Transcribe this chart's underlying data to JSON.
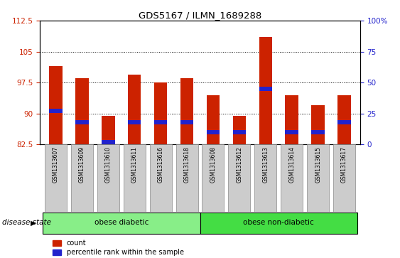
{
  "title": "GDS5167 / ILMN_1689288",
  "samples": [
    "GSM1313607",
    "GSM1313609",
    "GSM1313610",
    "GSM1313611",
    "GSM1313616",
    "GSM1313618",
    "GSM1313608",
    "GSM1313612",
    "GSM1313613",
    "GSM1313614",
    "GSM1313615",
    "GSM1313617"
  ],
  "count_values": [
    101.5,
    98.5,
    89.5,
    99.5,
    97.5,
    98.5,
    94.5,
    89.5,
    108.5,
    94.5,
    92.0,
    94.5
  ],
  "percentile_values": [
    27,
    18,
    2,
    18,
    18,
    18,
    10,
    10,
    45,
    10,
    10,
    18
  ],
  "ylim_left": [
    82.5,
    112.5
  ],
  "ylim_right": [
    0,
    100
  ],
  "yticks_left": [
    82.5,
    90.0,
    97.5,
    105.0,
    112.5
  ],
  "yticks_right": [
    0,
    25,
    50,
    75,
    100
  ],
  "bar_color": "#cc2200",
  "percentile_color": "#2222cc",
  "bar_width": 0.5,
  "group1_label": "obese diabetic",
  "group2_label": "obese non-diabetic",
  "group1_count": 6,
  "group2_count": 6,
  "group1_color": "#88ee88",
  "group2_color": "#44dd44",
  "disease_state_label": "disease state",
  "legend_count_label": "count",
  "legend_percentile_label": "percentile rank within the sample",
  "tick_color_left": "#cc2200",
  "tick_color_right": "#2222cc",
  "base_value": 82.5,
  "pct_bar_height": 1.0,
  "figsize": [
    5.63,
    3.63
  ],
  "dpi": 100
}
